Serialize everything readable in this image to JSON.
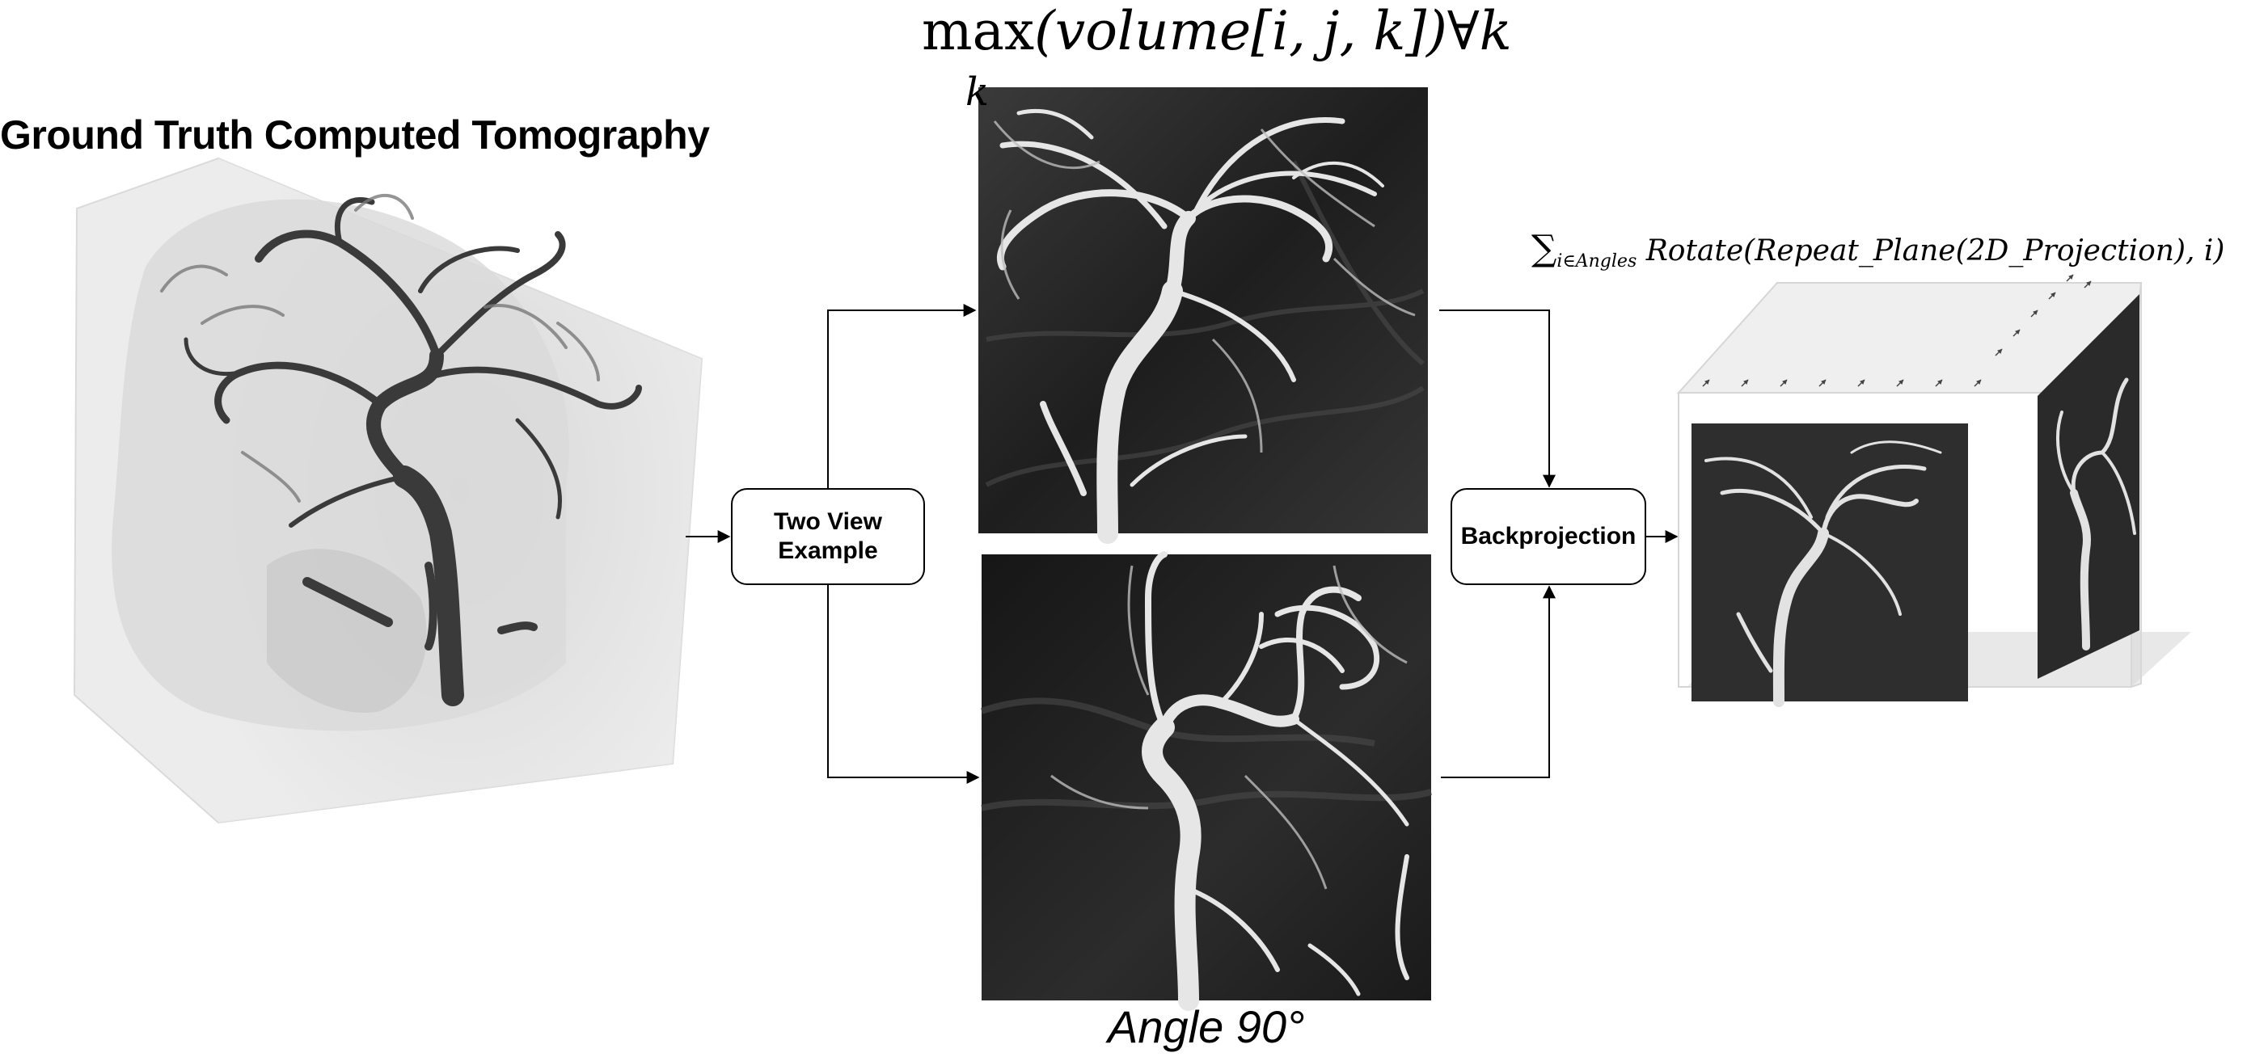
{
  "title": "Ground Truth Computed Tomography",
  "formula_max": {
    "func": "max",
    "arg": "(volume[i, j, k])∀k",
    "sub": "k"
  },
  "formula_sum": {
    "sigma": "∑",
    "sub": "i∈Angles",
    "expr": "Rotate(Repeat_Plane(2D_Projection), i)"
  },
  "nodes": {
    "two_view": "Two View\nExample",
    "backprojection": "Backprojection"
  },
  "angle_label": "Angle 90°",
  "colors": {
    "line": "#000000",
    "scan_dark": "#2a2a2a",
    "vessel_light": "#e8e8e8",
    "ct_bg": "#e6e6e6",
    "ct_vessel": "#3a3a3a"
  }
}
